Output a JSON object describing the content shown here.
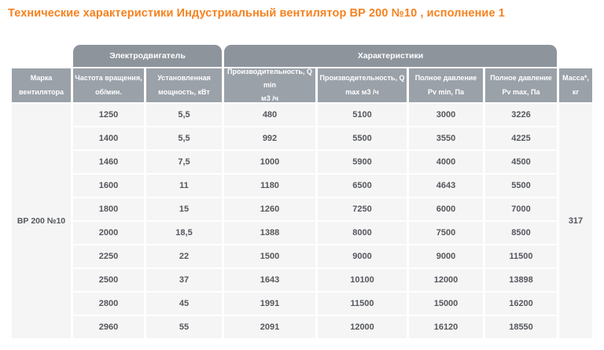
{
  "page": {
    "title": "Технические характеристики Индустриальный вентилятор ВР 200 №10 , исполнение 1"
  },
  "colors": {
    "title_accent": "#f58220",
    "group_header_bg": "#8d949c",
    "column_header_bg": "#9aa1a9",
    "cell_bg": "#f5f5f6",
    "cell_text": "#54575b"
  },
  "table": {
    "groups": [
      {
        "label": "Электродвигатель"
      },
      {
        "label": "Характеристики"
      }
    ],
    "columns": [
      "Марка\nвентилятора",
      "Частота вращения,\nоб/мин.",
      "Установленная\nмощность, кВт",
      "Производительность, Q min\nм3 /ч",
      "Производительность, Q\nmax м3 /ч",
      "Полное давление\nPv min, Па",
      "Полное давление\nPv max, Па",
      "Масса*,\nкг"
    ],
    "mark": "ВР 200 №10",
    "mass": "317",
    "rows": [
      [
        "1250",
        "5,5",
        "480",
        "5100",
        "3000",
        "3226"
      ],
      [
        "1400",
        "5,5",
        "992",
        "5500",
        "3550",
        "4225"
      ],
      [
        "1460",
        "7,5",
        "1000",
        "5900",
        "4000",
        "4500"
      ],
      [
        "1600",
        "11",
        "1180",
        "6500",
        "4643",
        "5500"
      ],
      [
        "1800",
        "15",
        "1260",
        "7250",
        "6000",
        "7000"
      ],
      [
        "2000",
        "18,5",
        "1388",
        "8000",
        "7500",
        "8500"
      ],
      [
        "2250",
        "22",
        "1500",
        "9000",
        "9000",
        "11500"
      ],
      [
        "2500",
        "37",
        "1643",
        "10100",
        "12000",
        "13898"
      ],
      [
        "2800",
        "45",
        "1991",
        "11500",
        "15000",
        "16200"
      ],
      [
        "2960",
        "55",
        "2091",
        "12000",
        "16120",
        "18550"
      ]
    ]
  }
}
